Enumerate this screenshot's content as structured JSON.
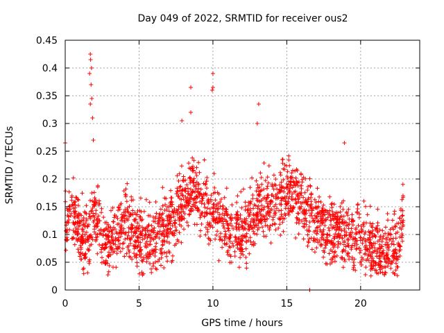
{
  "chart_data": {
    "type": "scatter",
    "title": "Day 049 of 2022, SRMTID for receiver ous2",
    "xlabel": "GPS time / hours",
    "ylabel": "SRMTID / TECUs",
    "xlim": [
      0,
      24
    ],
    "ylim": [
      0,
      0.45
    ],
    "xticks": [
      0,
      5,
      10,
      15,
      20
    ],
    "yticks": [
      0,
      0.05,
      0.1,
      0.15,
      0.2,
      0.25,
      0.3,
      0.35,
      0.4,
      0.45
    ],
    "grid": true,
    "marker": "+",
    "color": "#ff0000",
    "trend": [
      [
        0.0,
        0.12
      ],
      [
        0.3,
        0.14
      ],
      [
        0.8,
        0.12
      ],
      [
        1.2,
        0.09
      ],
      [
        1.6,
        0.1
      ],
      [
        1.8,
        0.16
      ],
      [
        2.2,
        0.12
      ],
      [
        2.8,
        0.075
      ],
      [
        3.5,
        0.1
      ],
      [
        4.0,
        0.12
      ],
      [
        5.0,
        0.1
      ],
      [
        6.0,
        0.09
      ],
      [
        7.0,
        0.11
      ],
      [
        8.0,
        0.15
      ],
      [
        8.5,
        0.18
      ],
      [
        9.0,
        0.17
      ],
      [
        9.5,
        0.15
      ],
      [
        10.0,
        0.14
      ],
      [
        10.5,
        0.12
      ],
      [
        11.0,
        0.11
      ],
      [
        12.0,
        0.1
      ],
      [
        13.0,
        0.15
      ],
      [
        14.0,
        0.16
      ],
      [
        15.0,
        0.17
      ],
      [
        15.5,
        0.18
      ],
      [
        16.0,
        0.16
      ],
      [
        17.0,
        0.12
      ],
      [
        18.0,
        0.11
      ],
      [
        19.0,
        0.1
      ],
      [
        20.0,
        0.09
      ],
      [
        21.0,
        0.07
      ],
      [
        22.0,
        0.065
      ],
      [
        22.5,
        0.08
      ],
      [
        22.9,
        0.14
      ]
    ],
    "spread": 0.045,
    "point_count": 2200,
    "highlights": [
      {
        "x": 1.7,
        "y": 0.425
      },
      {
        "x": 1.72,
        "y": 0.415
      },
      {
        "x": 1.78,
        "y": 0.4
      },
      {
        "x": 1.65,
        "y": 0.39
      },
      {
        "x": 1.75,
        "y": 0.37
      },
      {
        "x": 1.8,
        "y": 0.345
      },
      {
        "x": 1.7,
        "y": 0.335
      },
      {
        "x": 1.85,
        "y": 0.31
      },
      {
        "x": 1.9,
        "y": 0.27
      },
      {
        "x": 8.5,
        "y": 0.365
      },
      {
        "x": 10.0,
        "y": 0.39
      },
      {
        "x": 10.0,
        "y": 0.365
      },
      {
        "x": 9.95,
        "y": 0.36
      },
      {
        "x": 8.5,
        "y": 0.32
      },
      {
        "x": 13.1,
        "y": 0.335
      },
      {
        "x": 13.0,
        "y": 0.3
      },
      {
        "x": 18.9,
        "y": 0.265
      },
      {
        "x": 0.0,
        "y": 0.265
      },
      {
        "x": 7.9,
        "y": 0.305
      },
      {
        "x": 16.55,
        "y": 0.0
      },
      {
        "x": 16.55,
        "y": 0.0
      }
    ]
  }
}
